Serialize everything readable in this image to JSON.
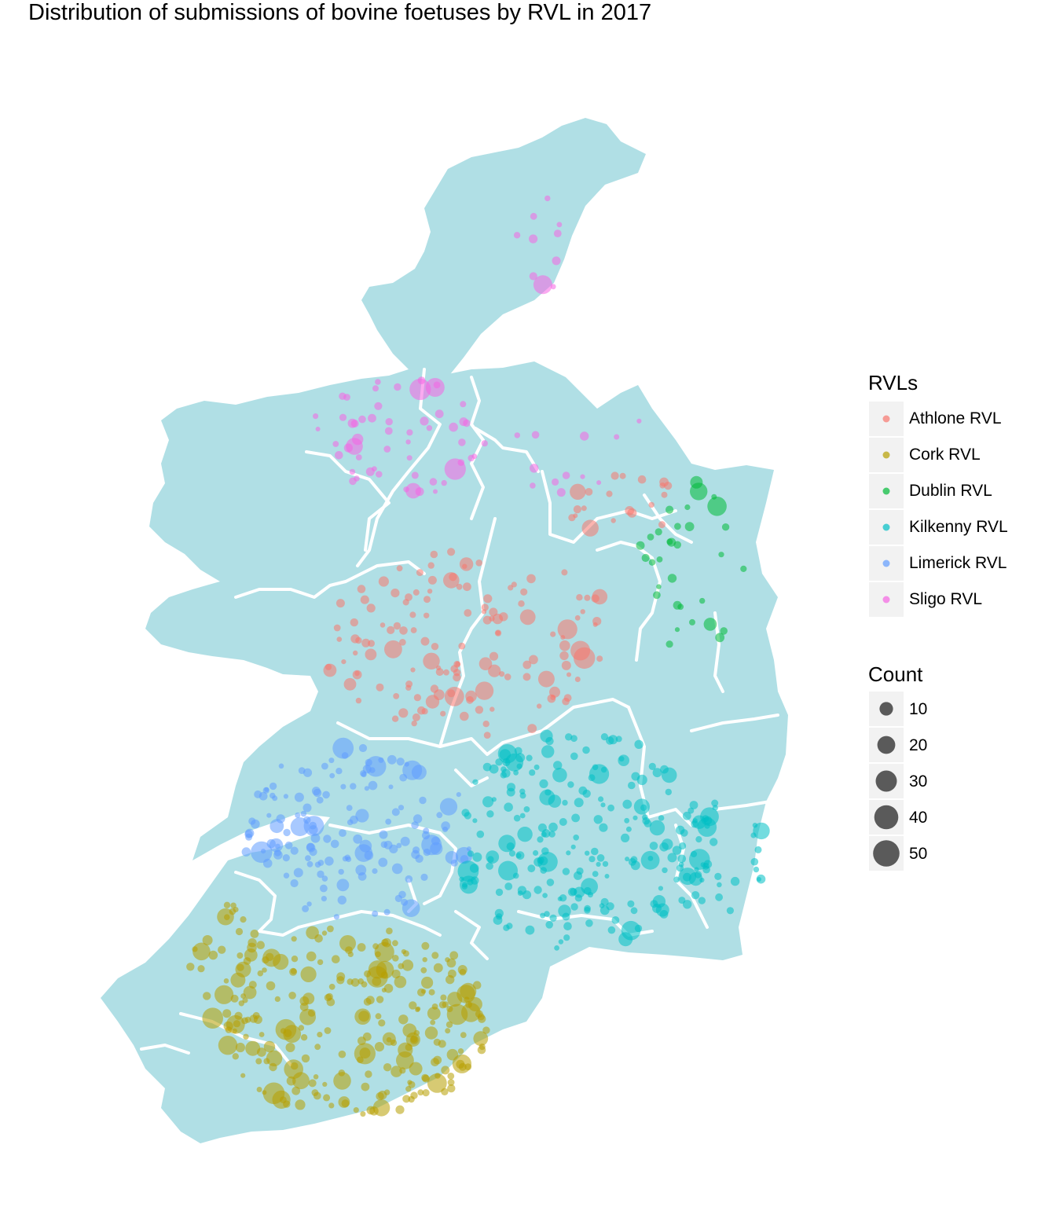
{
  "title": "Distribution of submissions of bovine foetuses by RVL in 2017",
  "colors": {
    "land": "#b0dfe5",
    "border": "#ffffff",
    "legend_key_bg": "#f2f2f2",
    "count_legend": "#333333"
  },
  "legend_rvl": {
    "title": "RVLs",
    "items": [
      {
        "label": "Athlone RVL",
        "color": "#f8766d"
      },
      {
        "label": "Cork RVL",
        "color": "#b79f00"
      },
      {
        "label": "Dublin RVL",
        "color": "#00ba38"
      },
      {
        "label": "Kilkenny RVL",
        "color": "#00bfc4"
      },
      {
        "label": "Limerick RVL",
        "color": "#619cff"
      },
      {
        "label": "Sligo RVL",
        "color": "#f564e3"
      }
    ]
  },
  "legend_count": {
    "title": "Count",
    "items": [
      {
        "label": "10",
        "value": 10
      },
      {
        "label": "20",
        "value": 20
      },
      {
        "label": "30",
        "value": 30
      },
      {
        "label": "40",
        "value": 40
      },
      {
        "label": "50",
        "value": 50
      }
    ]
  }
}
